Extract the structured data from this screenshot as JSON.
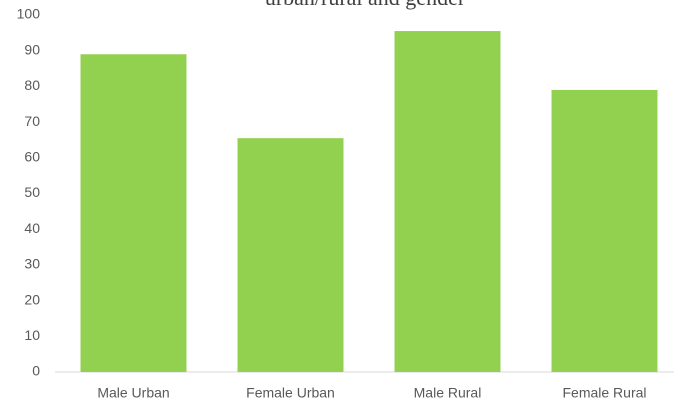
{
  "chart_data": {
    "type": "bar",
    "title": "urban/rural and gender",
    "categories": [
      "Male Urban",
      "Female Urban",
      "Male Rural",
      "Female Rural"
    ],
    "values": [
      89,
      65.5,
      95.5,
      79
    ],
    "color": "#92d050",
    "ylim": [
      0,
      100
    ],
    "yticks": [
      0,
      10,
      20,
      30,
      40,
      50,
      60,
      70,
      80,
      90,
      100
    ],
    "grid": false
  }
}
